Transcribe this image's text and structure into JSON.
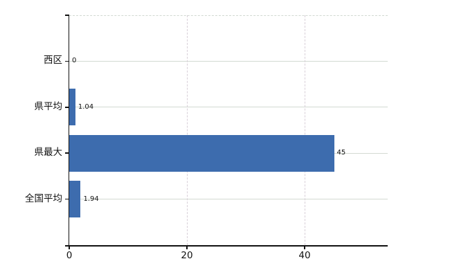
{
  "chart_data": {
    "type": "bar",
    "orientation": "horizontal",
    "title": "",
    "xlabel": "",
    "ylabel": "",
    "categories": [
      "西区",
      "県平均",
      "県最大",
      "全国平均"
    ],
    "values": [
      0,
      1.04,
      45,
      1.94
    ],
    "value_labels": [
      "0",
      "1.04",
      "45",
      "1.94"
    ],
    "x_ticks": [
      0,
      20,
      40
    ],
    "x_tick_labels": [
      "0",
      "20",
      "40"
    ],
    "xlim": [
      0,
      54
    ],
    "grid": true,
    "legend": false,
    "colors": {
      "bar": "#3d6cae",
      "h_gridline": "#d3dad2",
      "v_gridline": "#d8cfd8",
      "axis": "#111111",
      "text": "#111111",
      "background": "#ffffff"
    }
  }
}
